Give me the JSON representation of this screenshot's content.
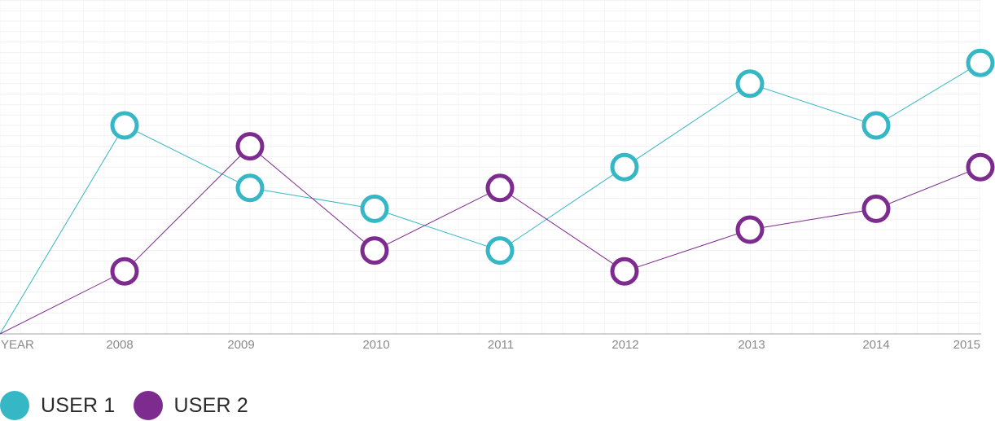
{
  "chart_data": {
    "type": "line",
    "xlabel": "YEAR",
    "ylabel": "",
    "categories": [
      "YEAR",
      "2008",
      "2009",
      "2010",
      "2011",
      "2012",
      "2013",
      "2014",
      "2015"
    ],
    "ylim": [
      0,
      16
    ],
    "grid": true,
    "legend_position": "bottom-left",
    "series": [
      {
        "name": "USER 1",
        "color": "#35b7c5",
        "values": [
          0,
          10,
          7,
          6,
          4,
          8,
          12,
          10,
          13
        ]
      },
      {
        "name": "USER 2",
        "color": "#7d2b8f",
        "values": [
          0,
          3,
          9,
          4,
          7,
          3,
          5,
          6,
          8
        ]
      }
    ]
  }
}
